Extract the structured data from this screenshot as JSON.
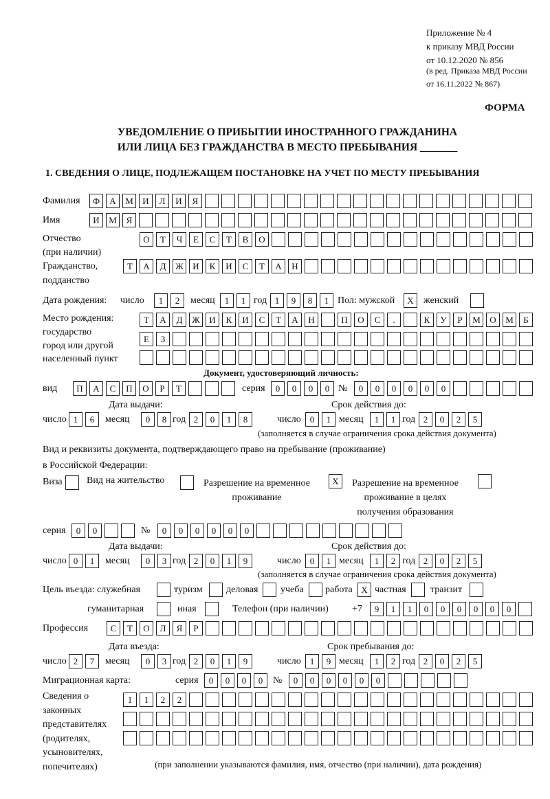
{
  "header": {
    "appendix": [
      "Приложение № 4",
      "к приказу МВД России",
      "от 10.12.2020 № 856"
    ],
    "edition": [
      "(в ред. Приказа МВД России",
      "от 16.11.2022 № 867)"
    ],
    "form_label": "ФОРМА",
    "title_line1": "УВЕДОМЛЕНИЕ О ПРИБЫТИИ ИНОСТРАННОГО ГРАЖДАНИНА",
    "title_line2": "ИЛИ ЛИЦА БЕЗ ГРАЖДАНСТВА В МЕСТО ПРЕБЫВАНИЯ _______",
    "section1": "1. СВЕДЕНИЯ О ЛИЦЕ, ПОДЛЕЖАЩЕМ ПОСТАНОВКЕ НА УЧЕТ ПО МЕСТУ ПРЕБЫВАНИЯ"
  },
  "labels": {
    "surname": "Фамилия",
    "name": "Имя",
    "patronymic": "Отчество",
    "patronymic_note": "(при наличии)",
    "citizenship": "Гражданство,",
    "citizenship2": "подданство",
    "birth_date": "Дата рождения:",
    "day": "число",
    "month": "месяц",
    "year": "год",
    "sex": "Пол: мужской",
    "female": "женский",
    "birth_place": [
      "Место рождения:",
      "государство",
      "город или другой",
      "населенный пункт"
    ],
    "id_doc": "Документ, удостоверяющий личность:",
    "kind": "вид",
    "series": "серия",
    "number": "№",
    "issue_date": "Дата выдачи:",
    "valid_until": "Срок действия до:",
    "validity_note": "(заполняется в случае ограничения срока действия документа)",
    "stay_doc_line1": "Вид и реквизиты документа, подтверждающего право на пребывание (проживание)",
    "stay_doc_line2": "в Российской Федерации:",
    "visa": "Виза",
    "residence_permit": "Вид на жительство",
    "temp_residence": [
      "Разрешение на временное",
      "проживание"
    ],
    "temp_residence_edu": [
      "Разрешение на временное",
      "проживание в целях",
      "получения образования"
    ],
    "purpose": "Цель въезда: служебная",
    "tourism": "туризм",
    "business": "деловая",
    "study": "учеба",
    "work": "работа",
    "private": "частная",
    "transit": "транзит",
    "humanitarian": "гуманитарная",
    "other": "иная",
    "phone": "Телефон (при наличии)",
    "phone_prefix": "+7",
    "profession": "Профессия",
    "entry_date": "Дата въезда:",
    "stay_until": "Срок пребывания до:",
    "migration_card": "Миграционная карта:",
    "representatives": [
      "Сведения о",
      "законных",
      "представителях",
      "(родителях,",
      "усыновителях,",
      "попечителях)"
    ],
    "representatives_note": "(при заполнении указываются фамилия, имя, отчество (при наличии), дата рождения)"
  },
  "values": {
    "surname": "ФАМИЛИЯ",
    "name": "ИМЯ",
    "patronymic": "ОТЧЕСТВО",
    "citizenship": "ТАДЖИКИСТАН",
    "birth": {
      "day": "12",
      "month": "11",
      "year": "1981"
    },
    "sex_male": "X",
    "sex_female": "",
    "birth_place": [
      "ТАДЖИКИСТАН ПОС. КУРМОМБ",
      "ЕЗ",
      ""
    ],
    "id_doc": {
      "kind": "ПАСПОРТ",
      "series": "0000",
      "number": "000000",
      "issued": {
        "day": "16",
        "month": "08",
        "year": "2018"
      },
      "valid": {
        "day": "01",
        "month": "11",
        "year": "2025"
      }
    },
    "stay_doc": {
      "visa": "",
      "residence_permit": "",
      "temp_residence": "X",
      "temp_residence_edu": "",
      "series": "00",
      "number": "000000",
      "issued": {
        "day": "01",
        "month": "03",
        "year": "2019"
      },
      "valid": {
        "day": "01",
        "month": "12",
        "year": "2025"
      }
    },
    "purpose": {
      "official": "",
      "tourism": "",
      "business": "",
      "study": "",
      "work": "X",
      "private": "",
      "transit": "",
      "humanitarian": "",
      "other": ""
    },
    "phone": "911000000",
    "profession": "СТОЛЯР",
    "entry": {
      "day": "27",
      "month": "03",
      "year": "2019"
    },
    "stay_until": {
      "day": "19",
      "month": "12",
      "year": "2025"
    },
    "migration_card": {
      "series": "0000",
      "number": "000000"
    },
    "representatives": [
      "1122",
      "",
      ""
    ]
  }
}
